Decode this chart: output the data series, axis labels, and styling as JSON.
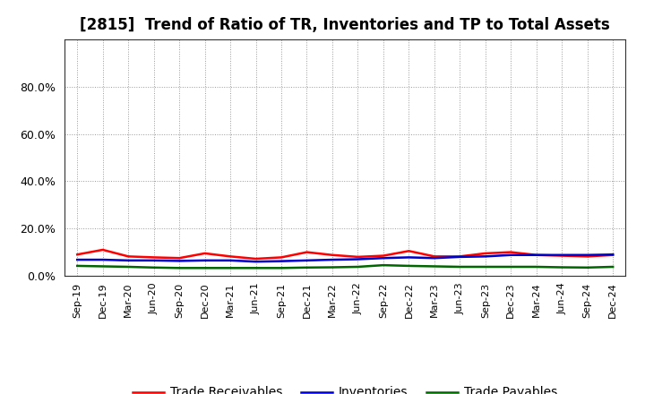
{
  "title": "[2815]  Trend of Ratio of TR, Inventories and TP to Total Assets",
  "x_labels": [
    "Sep-19",
    "Dec-19",
    "Mar-20",
    "Jun-20",
    "Sep-20",
    "Dec-20",
    "Mar-21",
    "Jun-21",
    "Sep-21",
    "Dec-21",
    "Mar-22",
    "Jun-22",
    "Sep-22",
    "Dec-22",
    "Mar-23",
    "Jun-23",
    "Sep-23",
    "Dec-23",
    "Mar-24",
    "Jun-24",
    "Sep-24",
    "Dec-24"
  ],
  "trade_receivables": [
    0.09,
    0.11,
    0.082,
    0.078,
    0.075,
    0.095,
    0.082,
    0.072,
    0.078,
    0.1,
    0.088,
    0.08,
    0.085,
    0.105,
    0.082,
    0.082,
    0.095,
    0.1,
    0.088,
    0.085,
    0.082,
    0.088
  ],
  "inventories": [
    0.068,
    0.068,
    0.065,
    0.065,
    0.063,
    0.065,
    0.065,
    0.06,
    0.062,
    0.065,
    0.068,
    0.07,
    0.075,
    0.078,
    0.075,
    0.08,
    0.082,
    0.088,
    0.088,
    0.088,
    0.088,
    0.09
  ],
  "trade_payables": [
    0.042,
    0.04,
    0.038,
    0.035,
    0.033,
    0.033,
    0.033,
    0.033,
    0.033,
    0.035,
    0.036,
    0.038,
    0.045,
    0.042,
    0.04,
    0.038,
    0.038,
    0.038,
    0.038,
    0.036,
    0.035,
    0.038
  ],
  "tr_color": "#ff0000",
  "inv_color": "#0000cc",
  "tp_color": "#006600",
  "ylim_min": 0.0,
  "ylim_max": 1.0,
  "yticks": [
    0.0,
    0.2,
    0.4,
    0.6,
    0.8
  ],
  "bg_color": "#ffffff",
  "grid_color": "#999999",
  "legend_labels": [
    "Trade Receivables",
    "Inventories",
    "Trade Payables"
  ],
  "linewidth": 1.8,
  "title_fontsize": 12,
  "tick_fontsize": 8
}
